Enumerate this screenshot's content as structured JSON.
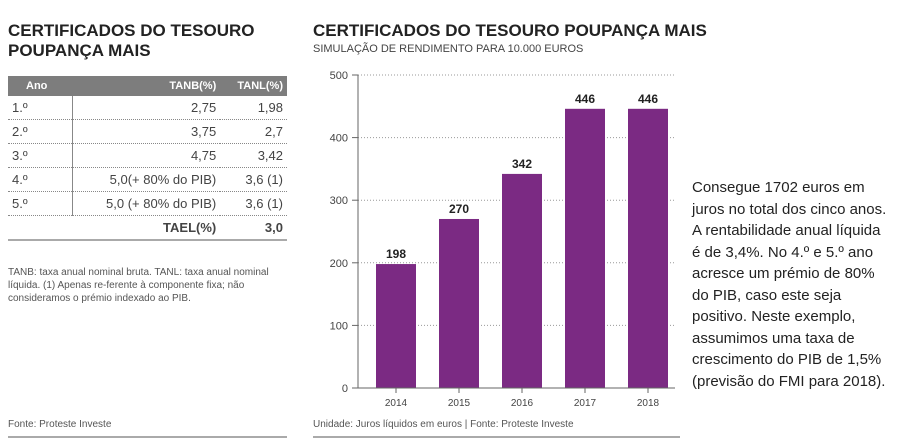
{
  "left": {
    "title_line1": "CERTIFICADOS DO TESOURO",
    "title_line2": "POUPANÇA MAIS",
    "headers": [
      "Ano",
      "TANB(%)",
      "TANL(%)"
    ],
    "rows": [
      [
        "1.º",
        "2,75",
        "1,98"
      ],
      [
        "2.º",
        "3,75",
        "2,7"
      ],
      [
        "3.º",
        "4,75",
        "3,42"
      ],
      [
        "4.º",
        "5,0(+ 80% do PIB)",
        "3,6 (1)"
      ],
      [
        "5.º",
        "5,0 (+ 80% do PIB)",
        "3,6 (1)"
      ]
    ],
    "total_label": "TAEL(%)",
    "total_value": "3,0",
    "note": "TANB: taxa anual nominal bruta. TANL: taxa anual nominal líquida. (1) Apenas re-ferente à componente fixa; não consideramos o prémio indexado ao PIB.",
    "source": "Fonte: Proteste Investe"
  },
  "chart_data": {
    "type": "bar",
    "title": "CERTIFICADOS DO TESOURO POUPANÇA MAIS",
    "subtitle": "SIMULAÇÃO DE RENDIMENTO PARA 10.000 EUROS",
    "categories": [
      "2014",
      "2015",
      "2016",
      "2017",
      "2018"
    ],
    "values": [
      198,
      270,
      342,
      446,
      446
    ],
    "yticks": [
      0,
      100,
      200,
      300,
      400,
      500
    ],
    "ylim": [
      0,
      500
    ],
    "xlabel": "",
    "ylabel": "",
    "grid": true,
    "bar_color": "#7b2a83",
    "footer": "Unidade: Juros líquidos em euros | Fonte: Proteste Investe"
  },
  "side_text": "Consegue 1702 euros em juros no total dos cinco anos. A rentabilidade anual líquida é de 3,4%. No 4.º e 5.º ano acresce um prémio de 80% do PIB, caso este seja positivo. Neste exemplo, assumimos uma taxa de crescimento do PIB de 1,5% (previsão do FMI para 2018)."
}
